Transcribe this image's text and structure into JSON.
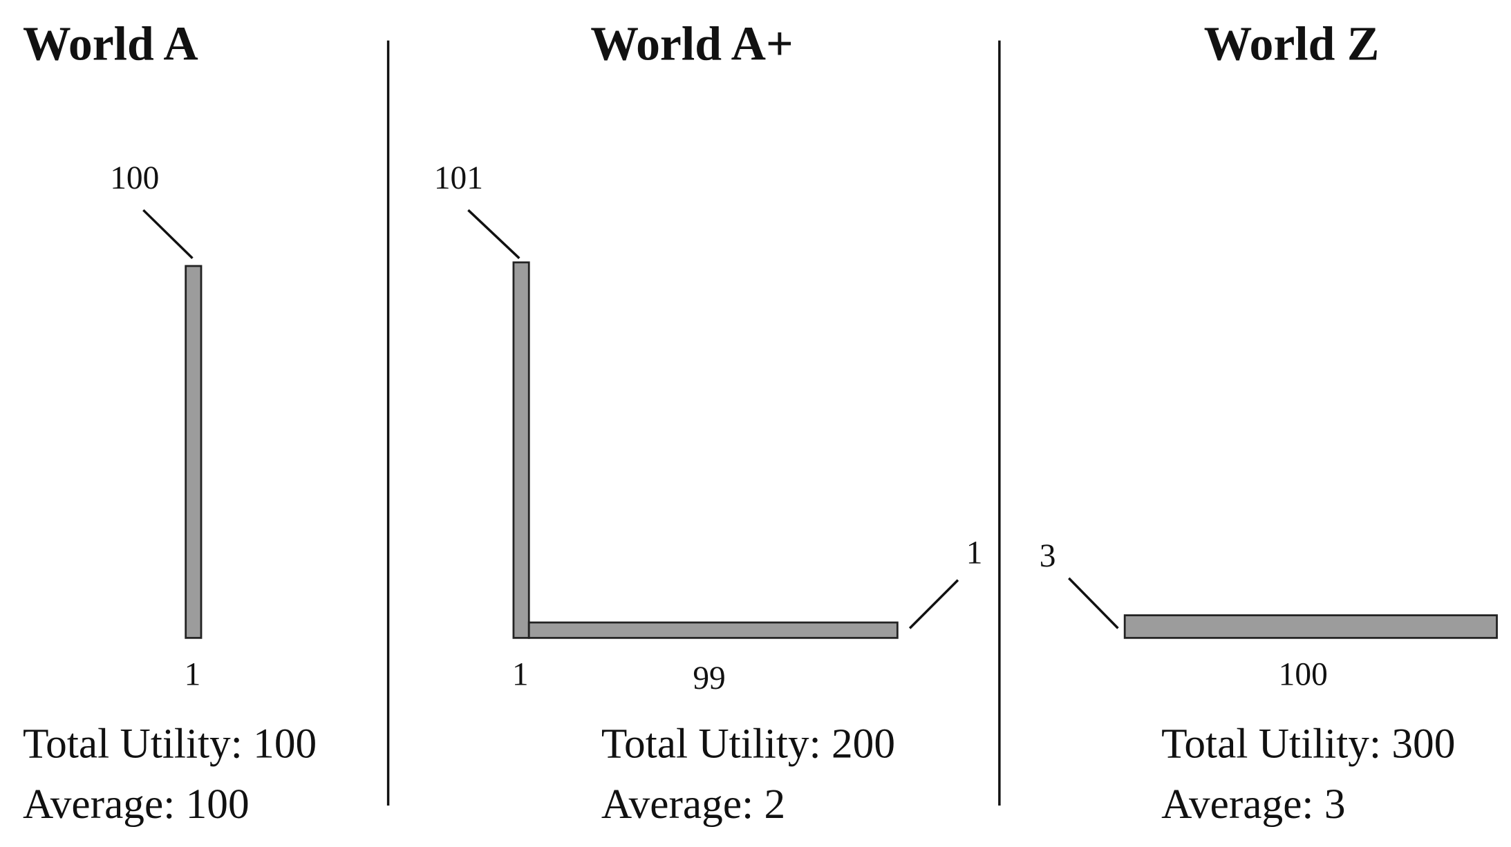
{
  "worlds": [
    {
      "title": "World A",
      "groups": [
        {
          "utility": 100,
          "population": 1
        }
      ],
      "total_label": "Total Utility:",
      "total": 100,
      "average_label": "Average:",
      "average": 100
    },
    {
      "title": "World A+",
      "groups": [
        {
          "utility": 101,
          "population": 1
        },
        {
          "utility": 1,
          "population": 99
        }
      ],
      "total_label": "Total Utility:",
      "total": 200,
      "average_label": "Average:",
      "average": 2
    },
    {
      "title": "World Z",
      "groups": [
        {
          "utility": 3,
          "population": 100
        }
      ],
      "total_label": "Total Utility:",
      "total": 300,
      "average_label": "Average:",
      "average": 3
    }
  ]
}
